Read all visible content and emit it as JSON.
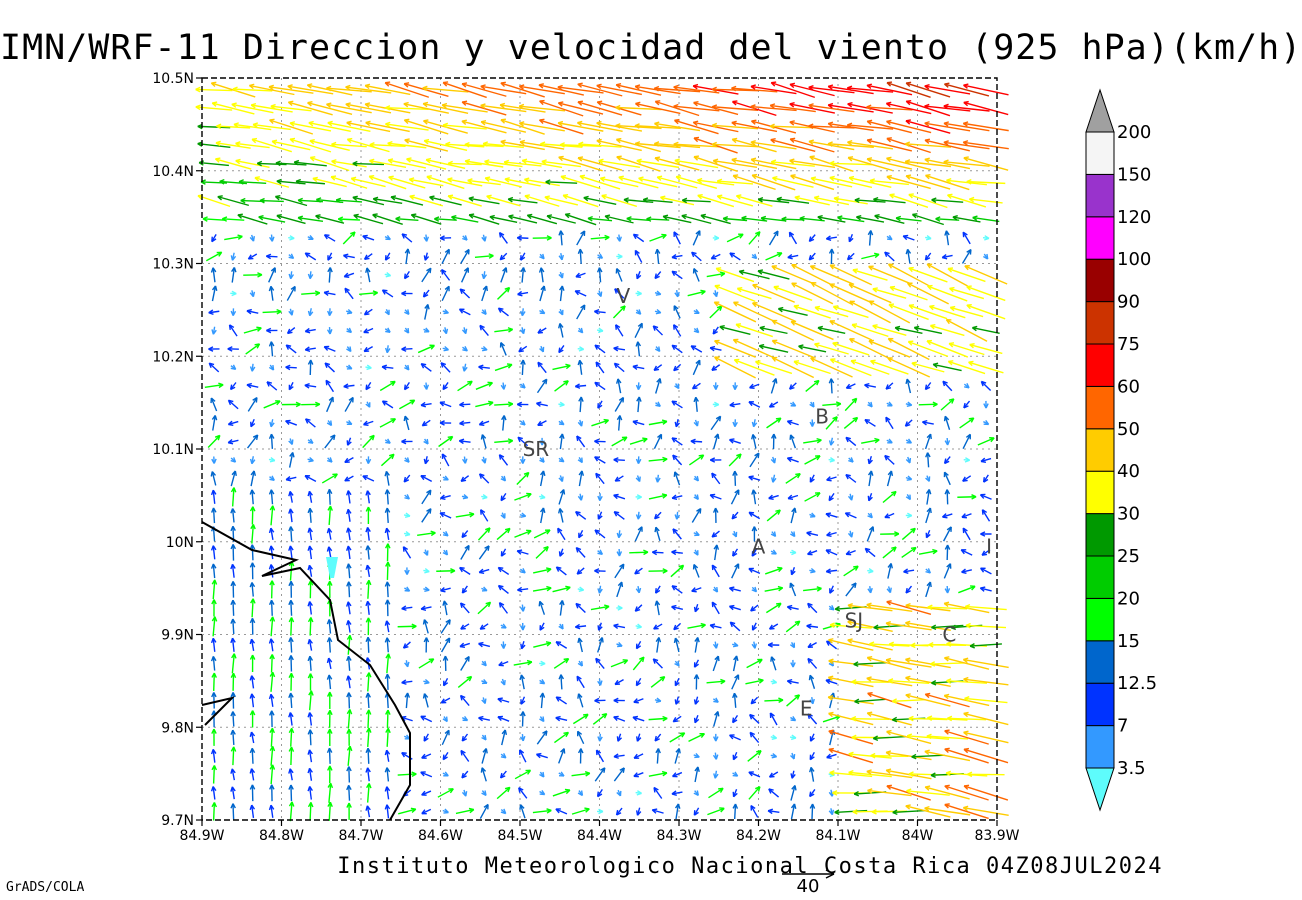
{
  "title": "IMN/WRF-11 Direccion y velocidad del viento (925 hPa)(km/h)",
  "credit": "Instituto Meteorologico Nacional Costa Rica 04Z08JUL2024",
  "software": "GrADS/COLA",
  "reference_vector": {
    "label": "40",
    "value_kmh": 40
  },
  "axes": {
    "x_labels": [
      "84.9W",
      "84.8W",
      "84.7W",
      "84.6W",
      "84.5W",
      "84.4W",
      "84.3W",
      "84.2W",
      "84.1W",
      "84W",
      "83.9W"
    ],
    "y_labels": [
      "10.5N",
      "10.4N",
      "10.3N",
      "10.2N",
      "10.1N",
      "10N",
      "9.9N",
      "9.8N",
      "9.7N"
    ],
    "lon_range": [
      -84.9,
      -83.9
    ],
    "lat_range": [
      9.7,
      10.5
    ],
    "grid": "dotted"
  },
  "places": [
    {
      "name": "V",
      "lon": -84.37,
      "lat": 10.265
    },
    {
      "name": "B",
      "lon": -84.12,
      "lat": 10.135
    },
    {
      "name": "SR",
      "lon": -84.48,
      "lat": 10.1
    },
    {
      "name": "A",
      "lon": -84.2,
      "lat": 9.995
    },
    {
      "name": "SJ",
      "lon": -84.08,
      "lat": 9.915
    },
    {
      "name": "C",
      "lon": -83.96,
      "lat": 9.9
    },
    {
      "name": "E",
      "lon": -84.14,
      "lat": 9.82
    },
    {
      "name": "I",
      "lon": -83.91,
      "lat": 9.995
    }
  ],
  "colorbar": {
    "labels": [
      "3.5",
      "7",
      "12.5",
      "15",
      "20",
      "25",
      "30",
      "40",
      "50",
      "60",
      "75",
      "90",
      "100",
      "120",
      "150",
      "200"
    ],
    "colors": [
      "#5efcfc",
      "#3399ff",
      "#0033ff",
      "#0066cc",
      "#00ff00",
      "#00cc00",
      "#009900",
      "#ffff00",
      "#ffcc00",
      "#ff6600",
      "#ff0000",
      "#cc3300",
      "#990000",
      "#ff00ff",
      "#9933cc",
      "#f5f5f5",
      "#a0a0a0"
    ]
  }
}
